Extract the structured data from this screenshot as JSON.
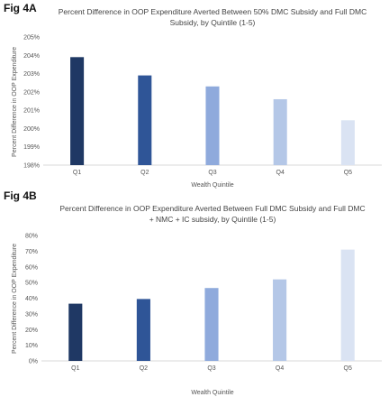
{
  "chart_data": [
    {
      "type": "bar",
      "fig_label": "Fig 4A",
      "title": "Percent Difference in OOP Expenditure Averted Between 50% DMC Subsidy and Full DMC",
      "subtitle": "Subsidy, by Quintile (1-5)",
      "xlabel": "Wealth Quintile",
      "ylabel": "Percent Difference in OOP Expenditure",
      "categories": [
        "Q1",
        "Q2",
        "Q3",
        "Q4",
        "Q5"
      ],
      "values": [
        203.9,
        202.9,
        202.3,
        201.6,
        200.45
      ],
      "ylim": [
        198,
        205
      ],
      "yticks": [
        198,
        199,
        200,
        201,
        202,
        203,
        204,
        205
      ],
      "ytick_labels": [
        "198%",
        "199%",
        "200%",
        "201%",
        "202%",
        "203%",
        "204%",
        "205%"
      ],
      "colors": [
        "#1f3864",
        "#2f5597",
        "#8faadc",
        "#b4c7e7",
        "#dae3f3"
      ],
      "grid": false,
      "legend": "none"
    },
    {
      "type": "bar",
      "fig_label": "Fig 4B",
      "title": "Percent Difference in OOP Expenditure Averted Between Full DMC Subsidy and Full DMC",
      "subtitle": "+ NMC + IC subsidy, by Quintile (1-5)",
      "xlabel": "Wealth Quintile",
      "ylabel": "Percent Difference in OOP Expenditure",
      "categories": [
        "Q1",
        "Q2",
        "Q3",
        "Q4",
        "Q5"
      ],
      "values": [
        36.5,
        39.5,
        46.5,
        52,
        71
      ],
      "ylim": [
        0,
        80
      ],
      "yticks": [
        0,
        10,
        20,
        30,
        40,
        50,
        60,
        70,
        80
      ],
      "ytick_labels": [
        "0%",
        "10%",
        "20%",
        "30%",
        "40%",
        "50%",
        "60%",
        "70%",
        "80%"
      ],
      "colors": [
        "#1f3864",
        "#2f5597",
        "#8faadc",
        "#b4c7e7",
        "#dae3f3"
      ],
      "grid": false,
      "legend": "none"
    }
  ]
}
